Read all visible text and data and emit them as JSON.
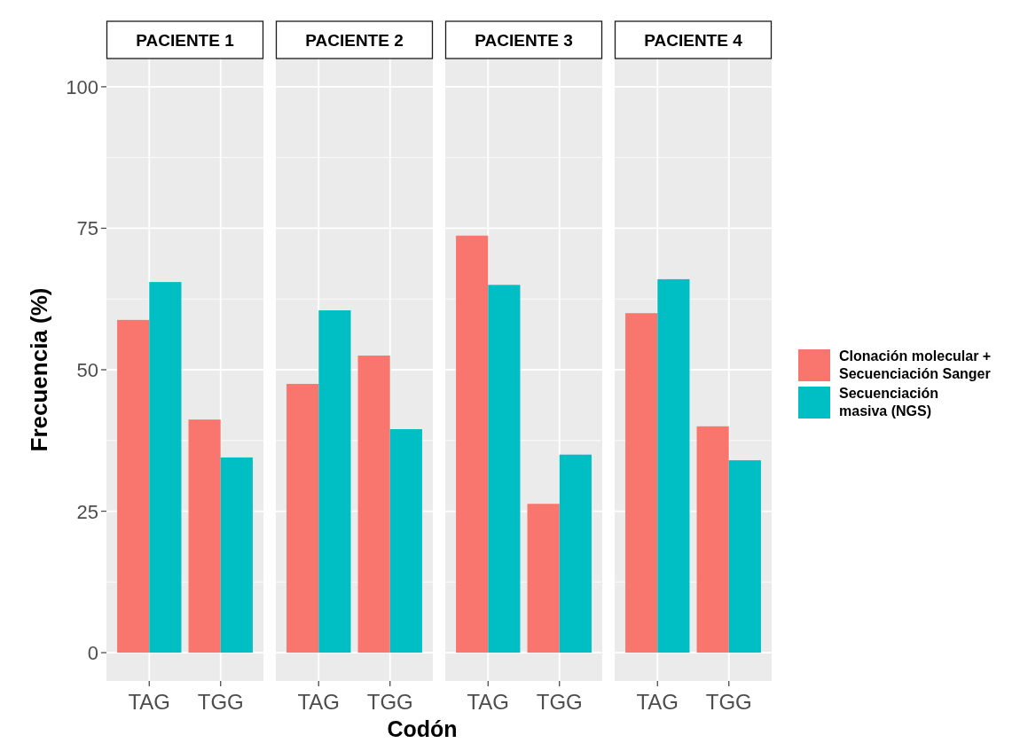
{
  "chart_data": [
    {
      "type": "bar",
      "title": "PACIENTE 1",
      "ylabel": "Frecuencia (%)",
      "categories": [
        "TAG",
        "TGG"
      ],
      "series": [
        {
          "color": "#f8766d",
          "values": [
            58.8,
            41.2
          ]
        },
        {
          "color": "#00bfc4",
          "values": [
            65.5,
            34.5
          ]
        }
      ],
      "ylim": [
        -5,
        105
      ],
      "yticks": [
        0,
        25,
        50,
        75,
        100
      ],
      "grid": true
    },
    {
      "type": "bar",
      "title": "PACIENTE 2",
      "xlabel": "Codón",
      "categories": [
        "TAG",
        "TGG"
      ],
      "series": [
        {
          "color": "#f8766d",
          "values": [
            47.5,
            52.5
          ]
        },
        {
          "color": "#00bfc4",
          "values": [
            60.5,
            39.5
          ]
        }
      ],
      "ylim": [
        -5,
        105
      ],
      "yticks": [
        0,
        25,
        50,
        75,
        100
      ],
      "grid": true,
      "tick_labels": "x"
    },
    {
      "type": "bar",
      "title": "PACIENTE 3",
      "categories": [
        "TAG",
        "TGG"
      ],
      "series": [
        {
          "color": "#f8766d",
          "values": [
            73.7,
            26.3
          ]
        },
        {
          "color": "#00bfc4",
          "values": [
            65,
            35
          ]
        }
      ],
      "ylim": [
        -5,
        105
      ],
      "yticks": [
        0,
        25,
        50,
        75,
        100
      ],
      "grid": true,
      "tick_labels": "x"
    },
    {
      "type": "bar",
      "title": "PACIENTE 4",
      "categories": [
        "TAG",
        "TGG"
      ],
      "series": [
        {
          "name": "Clonación molecular +\nSecuenciación Sanger",
          "color": "#f8766d",
          "values": [
            60,
            40
          ]
        },
        {
          "name": "Secuenciación\nmasiva (NGS)",
          "color": "#00bfc4",
          "values": [
            66,
            34
          ]
        }
      ],
      "ylim": [
        -5,
        105
      ],
      "yticks": [
        0,
        25,
        50,
        75,
        100
      ],
      "grid": true,
      "tick_labels": "x",
      "legend": "right"
    }
  ]
}
